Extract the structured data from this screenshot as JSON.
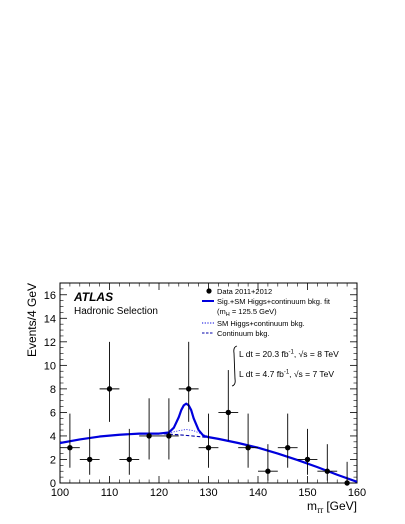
{
  "chart_data": {
    "type": "scatter",
    "xlabel": "m",
    "xlabel_sub": "ττ",
    "xlabel_unit": " [GeV]",
    "ylabel": "Events/4 GeV",
    "xlim": [
      100,
      160
    ],
    "ylim": [
      0,
      17
    ],
    "x_ticks": [
      100,
      110,
      120,
      130,
      140,
      150,
      160
    ],
    "y_ticks": [
      0,
      2,
      4,
      6,
      8,
      10,
      12,
      14,
      16
    ],
    "grid": false,
    "experiment_label": "ATLAS",
    "selection_label": "Hadronic Selection",
    "legend": {
      "placement": "top-right",
      "entries": [
        {
          "label": "Data 2011+2012",
          "style": "marker"
        },
        {
          "label": "Sig.+SM Higgs+continuum bkg. fit",
          "style": "solid-thick"
        },
        {
          "label": "(m",
          "sub": "H",
          "rest": " = 125.5 GeV)",
          "style": "none"
        },
        {
          "label": "SM Higgs+continuum bkg.",
          "style": "dotted-thin"
        },
        {
          "label": "Continuum bkg.",
          "style": "dashed"
        }
      ]
    },
    "lumi": [
      {
        "lumi_text": "L dt = 20.3 fb",
        "lumi_sup": "-1",
        "energy_text": ", √s = 8 TeV"
      },
      {
        "lumi_text": "L dt =  4.7 fb",
        "lumi_sup": "-1",
        "energy_text": ", √s = 7 TeV"
      }
    ],
    "series": [
      {
        "name": "Data 2011+2012",
        "style": "points",
        "x": [
          102,
          106,
          110,
          114,
          118,
          122,
          126,
          130,
          134,
          138,
          142,
          146,
          150,
          154,
          158
        ],
        "y": [
          3,
          2,
          8,
          2,
          4,
          4,
          8,
          3,
          6,
          3,
          1,
          3,
          2,
          1,
          0
        ],
        "err_low": [
          1.7,
          1.3,
          2.8,
          1.3,
          2.0,
          2.0,
          2.8,
          1.7,
          2.4,
          1.7,
          0.8,
          1.7,
          1.3,
          0.8,
          0
        ],
        "err_high": [
          2.9,
          2.6,
          4.0,
          2.6,
          3.2,
          3.2,
          4.0,
          2.9,
          3.6,
          2.9,
          2.3,
          2.9,
          2.6,
          2.3,
          1.8
        ],
        "x_half_width": 2
      },
      {
        "name": "Sig.+SM Higgs+continuum bkg. fit",
        "style": "solid-thick",
        "x": [
          100,
          104,
          108,
          112,
          116,
          120,
          122,
          123,
          124,
          124.5,
          125,
          125.5,
          126,
          126.5,
          127,
          128,
          129,
          130,
          132,
          136,
          140,
          144,
          148,
          152,
          156,
          160
        ],
        "y": [
          3.4,
          3.7,
          3.95,
          4.1,
          4.2,
          4.2,
          4.3,
          4.7,
          5.6,
          6.2,
          6.6,
          6.75,
          6.6,
          6.2,
          5.5,
          4.5,
          4.0,
          3.9,
          3.75,
          3.4,
          3.0,
          2.5,
          1.95,
          1.35,
          0.7,
          0.1
        ]
      },
      {
        "name": "SM Higgs+continuum bkg.",
        "style": "dotted-thin",
        "x": [
          100,
          104,
          108,
          112,
          116,
          120,
          122,
          124,
          125.5,
          127,
          129,
          130,
          132,
          136,
          140,
          144,
          148,
          152,
          156,
          160
        ],
        "y": [
          3.4,
          3.7,
          3.95,
          4.1,
          4.2,
          4.2,
          4.25,
          4.45,
          4.55,
          4.45,
          4.1,
          3.95,
          3.75,
          3.4,
          3.0,
          2.5,
          1.95,
          1.35,
          0.7,
          0.1
        ]
      },
      {
        "name": "Continuum bkg.",
        "style": "dashed",
        "x": [
          100,
          104,
          108,
          112,
          116,
          120,
          124,
          128,
          132,
          136,
          140,
          144,
          148,
          152,
          156,
          160
        ],
        "y": [
          3.4,
          3.7,
          3.95,
          4.1,
          4.2,
          4.2,
          4.1,
          3.95,
          3.75,
          3.4,
          3.0,
          2.5,
          1.95,
          1.35,
          0.7,
          0.1
        ]
      }
    ]
  }
}
